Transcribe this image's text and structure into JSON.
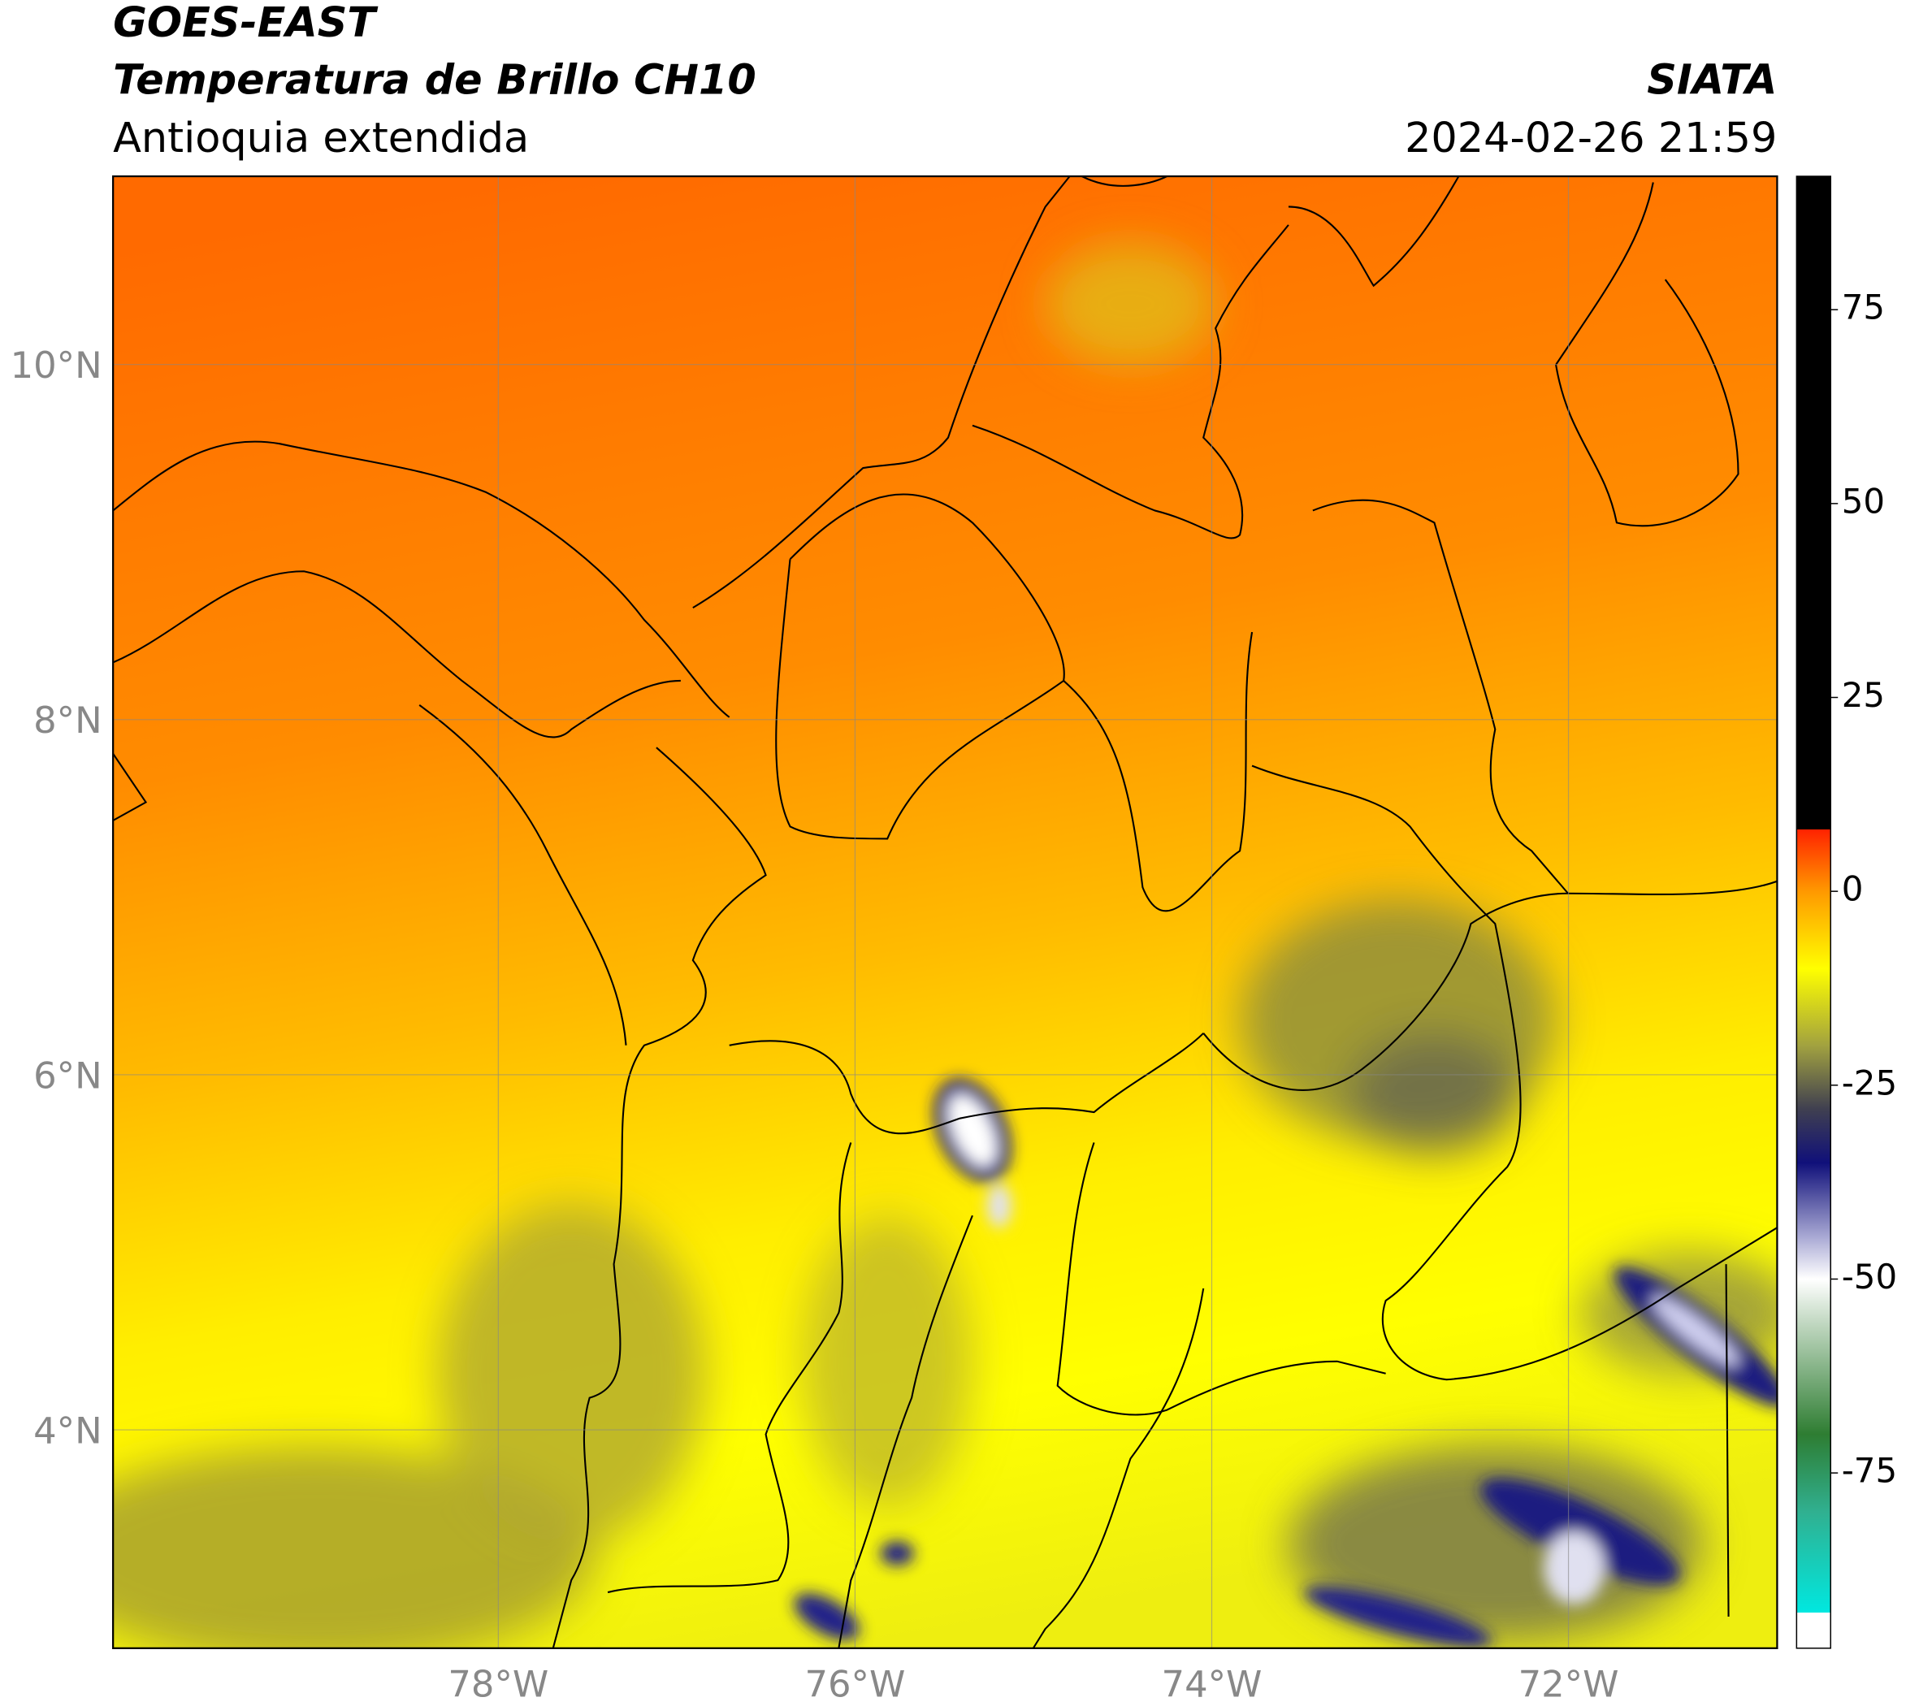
{
  "header": {
    "title": "GOES-EAST",
    "subtitle": "Temperatura de Brillo CH10",
    "region": "Antioquia extendida",
    "source": "SIATA",
    "timestamp": "2024-02-26 21:59"
  },
  "map": {
    "xlim": [
      -80.16,
      -70.83
    ],
    "ylim": [
      2.77,
      11.06
    ],
    "xticks": [
      {
        "value": -78,
        "label": "78°W"
      },
      {
        "value": -76,
        "label": "76°W"
      },
      {
        "value": -74,
        "label": "74°W"
      },
      {
        "value": -72,
        "label": "72°W"
      }
    ],
    "yticks": [
      {
        "value": 4,
        "label": "4°N"
      },
      {
        "value": 6,
        "label": "6°N"
      },
      {
        "value": 8,
        "label": "8°N"
      },
      {
        "value": 10,
        "label": "10°N"
      }
    ],
    "grid": true
  },
  "colorbar": {
    "lim": [
      -97.6,
      92.2
    ],
    "ticks": [
      75,
      50,
      25,
      0,
      -25,
      -50,
      -75
    ],
    "stops": [
      {
        "value": -97.6,
        "color": "#ffffff"
      },
      {
        "value": -93,
        "color": "#ffffff"
      },
      {
        "value": -93,
        "color": "#00e8e0"
      },
      {
        "value": -80,
        "color": "#30b090"
      },
      {
        "value": -70,
        "color": "#2e7d32"
      },
      {
        "value": -55,
        "color": "#c8dcc8"
      },
      {
        "value": -50,
        "color": "#ffffff"
      },
      {
        "value": -45,
        "color": "#b0b0d8"
      },
      {
        "value": -35,
        "color": "#10107a"
      },
      {
        "value": -28,
        "color": "#404050"
      },
      {
        "value": -20,
        "color": "#a0a040"
      },
      {
        "value": -10,
        "color": "#ffff00"
      },
      {
        "value": 0,
        "color": "#ff9900"
      },
      {
        "value": 8,
        "color": "#ff2200"
      },
      {
        "value": 8,
        "color": "#000000"
      },
      {
        "value": 92.2,
        "color": "#000000"
      }
    ]
  }
}
